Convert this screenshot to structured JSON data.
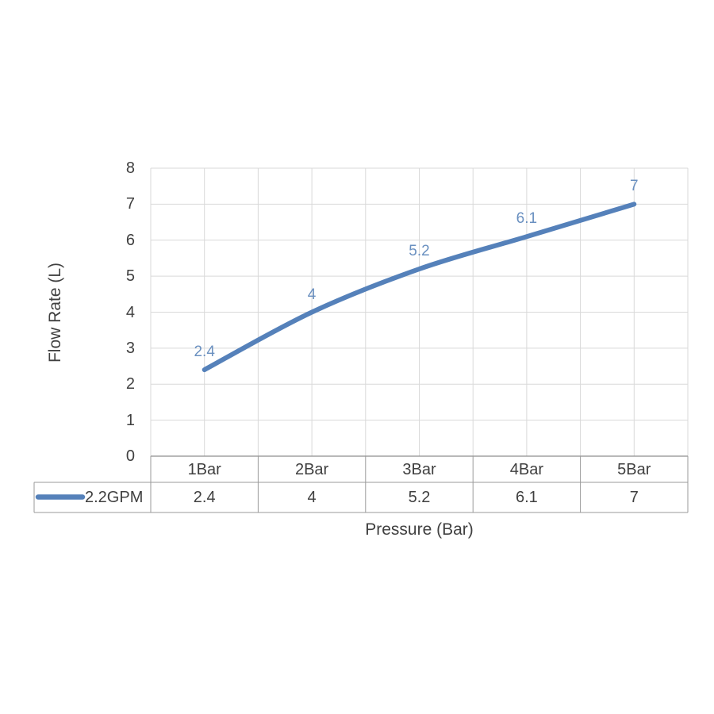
{
  "chart_data": {
    "type": "line",
    "title": "",
    "categories": [
      "1Bar",
      "2Bar",
      "3Bar",
      "4Bar",
      "5Bar"
    ],
    "series": [
      {
        "name": "2.2GPM",
        "values": [
          2.4,
          4,
          5.2,
          6.1,
          7
        ]
      }
    ],
    "xlabel": "Pressure (Bar)",
    "ylabel": "Flow Rate (L)",
    "ylim": [
      0,
      8
    ],
    "ytick_step": 1,
    "ytick_labels": [
      "0",
      "1",
      "2",
      "3",
      "4",
      "5",
      "6",
      "7",
      "8"
    ],
    "grid": true,
    "smooth_line": true,
    "show_data_labels": true,
    "show_data_table": true,
    "legend_position": "data-table-left"
  },
  "colors": {
    "series_line": "#5581ba",
    "data_label": "#6a90c0",
    "grid_line": "#d9d9d9",
    "axis_line": "#8f8f8f",
    "table_border": "#9a9a9a",
    "text": "#404040",
    "background": "#ffffff"
  }
}
